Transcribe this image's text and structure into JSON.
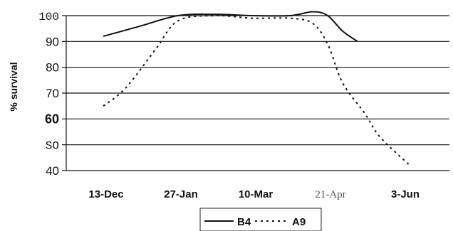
{
  "chart_data": {
    "type": "line",
    "ylabel": "% survival",
    "xlabel": "",
    "ylim": [
      40,
      100
    ],
    "yticks": [
      "40",
      "SO",
      "60",
      "70",
      "80",
      "90",
      "100"
    ],
    "yticks_values": [
      40,
      50,
      60,
      70,
      80,
      90,
      100
    ],
    "categories": [
      "13-Dec",
      "27-Jan",
      "10-Mar",
      "21-Apr",
      "3-Jun"
    ],
    "grid": "horizontal",
    "legend_position": "bottom",
    "series": [
      {
        "name": "B4",
        "line_style": "solid",
        "x": [
          0,
          0.5,
          1,
          1.5,
          2,
          2.5,
          2.8,
          3,
          3.2,
          3.4
        ],
        "y": [
          92,
          96,
          100,
          100.5,
          100,
          100,
          101.5,
          100,
          94,
          90
        ]
      },
      {
        "name": "A9",
        "line_style": "dotted",
        "x": [
          0,
          0.3,
          0.7,
          1,
          1.5,
          2,
          2.5,
          2.8,
          3,
          3.2,
          3.5,
          3.7,
          4.1
        ],
        "y": [
          65,
          72,
          87,
          98,
          100,
          99,
          99,
          97,
          89,
          74,
          62,
          53,
          42
        ]
      }
    ]
  }
}
